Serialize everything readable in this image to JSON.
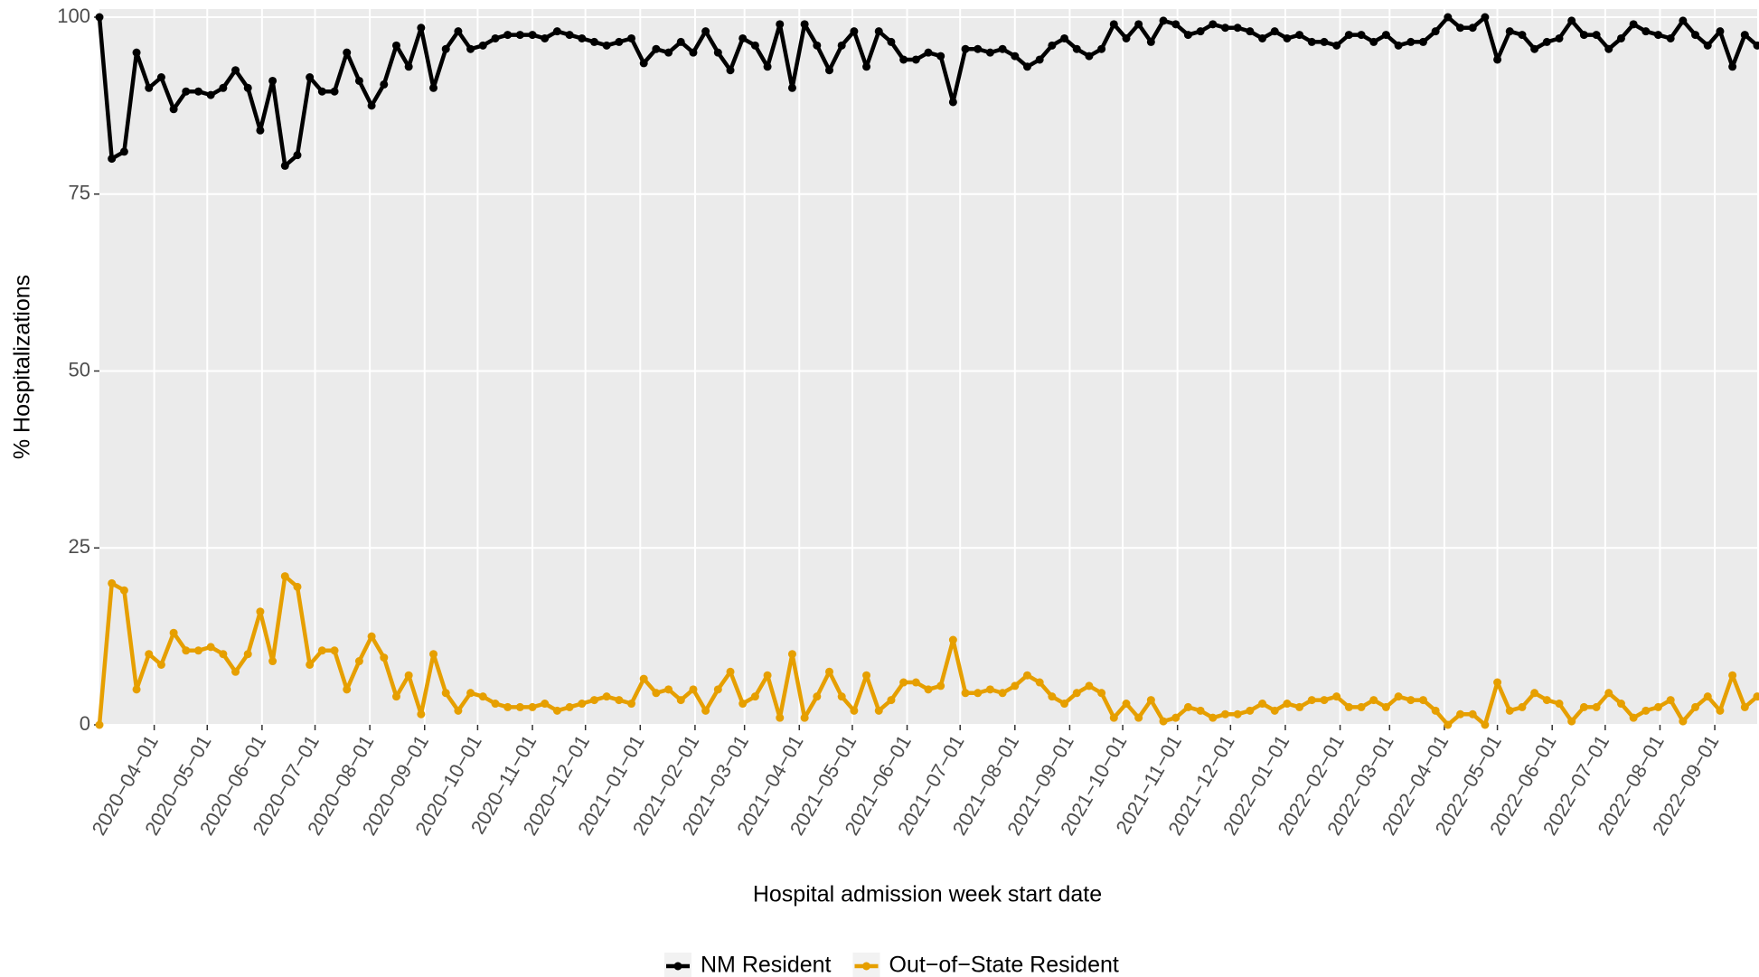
{
  "chart_data": {
    "type": "line",
    "x_label": "Hospital admission week start date",
    "y_label": "% Hospitalizations",
    "x": [
      "2020-03-01",
      "2020-03-08",
      "2020-03-15",
      "2020-03-22",
      "2020-03-29",
      "2020-04-05",
      "2020-04-12",
      "2020-04-19",
      "2020-04-26",
      "2020-05-03",
      "2020-05-10",
      "2020-05-17",
      "2020-05-24",
      "2020-05-31",
      "2020-06-07",
      "2020-06-14",
      "2020-06-21",
      "2020-06-28",
      "2020-07-05",
      "2020-07-12",
      "2020-07-19",
      "2020-07-26",
      "2020-08-02",
      "2020-08-09",
      "2020-08-16",
      "2020-08-23",
      "2020-08-30",
      "2020-09-06",
      "2020-09-13",
      "2020-09-20",
      "2020-09-27",
      "2020-10-04",
      "2020-10-11",
      "2020-10-18",
      "2020-10-25",
      "2020-11-01",
      "2020-11-08",
      "2020-11-15",
      "2020-11-22",
      "2020-11-29",
      "2020-12-06",
      "2020-12-13",
      "2020-12-20",
      "2020-12-27",
      "2021-01-03",
      "2021-01-10",
      "2021-01-17",
      "2021-01-24",
      "2021-01-31",
      "2021-02-07",
      "2021-02-14",
      "2021-02-21",
      "2021-02-28",
      "2021-03-07",
      "2021-03-14",
      "2021-03-21",
      "2021-03-28",
      "2021-04-04",
      "2021-04-11",
      "2021-04-18",
      "2021-04-25",
      "2021-05-02",
      "2021-05-09",
      "2021-05-16",
      "2021-05-23",
      "2021-05-30",
      "2021-06-06",
      "2021-06-13",
      "2021-06-20",
      "2021-06-27",
      "2021-07-04",
      "2021-07-11",
      "2021-07-18",
      "2021-07-25",
      "2021-08-01",
      "2021-08-08",
      "2021-08-15",
      "2021-08-22",
      "2021-08-29",
      "2021-09-05",
      "2021-09-12",
      "2021-09-19",
      "2021-09-26",
      "2021-10-03",
      "2021-10-10",
      "2021-10-17",
      "2021-10-24",
      "2021-10-31",
      "2021-11-07",
      "2021-11-14",
      "2021-11-21",
      "2021-11-28",
      "2021-12-05",
      "2021-12-12",
      "2021-12-19",
      "2021-12-26",
      "2022-01-02",
      "2022-01-09",
      "2022-01-16",
      "2022-01-23",
      "2022-01-30",
      "2022-02-06",
      "2022-02-13",
      "2022-02-20",
      "2022-02-27",
      "2022-03-06",
      "2022-03-13",
      "2022-03-20",
      "2022-03-27",
      "2022-04-03",
      "2022-04-10",
      "2022-04-17",
      "2022-04-24",
      "2022-05-01",
      "2022-05-08",
      "2022-05-15",
      "2022-05-22",
      "2022-05-29",
      "2022-06-05",
      "2022-06-12",
      "2022-06-19",
      "2022-06-26",
      "2022-07-03",
      "2022-07-10",
      "2022-07-17",
      "2022-07-24",
      "2022-07-31",
      "2022-08-07",
      "2022-08-14",
      "2022-08-21",
      "2022-08-28",
      "2022-09-04",
      "2022-09-11",
      "2022-09-18",
      "2022-09-25"
    ],
    "series": [
      {
        "name": "NM Resident",
        "color": "#000000",
        "values": [
          100,
          80,
          81,
          95,
          90,
          91.5,
          87,
          89.5,
          89.5,
          89,
          90,
          92.5,
          90,
          84,
          91,
          79,
          80.5,
          91.5,
          89.5,
          89.5,
          95,
          91,
          87.5,
          90.5,
          96,
          93,
          98.5,
          90,
          95.5,
          98,
          95.5,
          96,
          97,
          97.5,
          97.5,
          97.5,
          97,
          98,
          97.5,
          97,
          96.5,
          96,
          96.5,
          97,
          93.5,
          95.5,
          95,
          96.5,
          95,
          98,
          95,
          92.5,
          97,
          96,
          93,
          99,
          90,
          99,
          96,
          92.5,
          96,
          98,
          93,
          98,
          96.5,
          94,
          94,
          95,
          94.5,
          88,
          95.5,
          95.5,
          95,
          95.5,
          94.5,
          93,
          94,
          96,
          97,
          95.5,
          94.5,
          95.5,
          99,
          97,
          99,
          96.5,
          99.5,
          99,
          97.5,
          98,
          99,
          98.5,
          98.5,
          98,
          97,
          98,
          97,
          97.5,
          96.5,
          96.5,
          96,
          97.5,
          97.5,
          96.5,
          97.5,
          96,
          96.5,
          96.5,
          98,
          100,
          98.5,
          98.5,
          100,
          94,
          98,
          97.5,
          95.5,
          96.5,
          97,
          99.5,
          97.5,
          97.5,
          95.5,
          97,
          99,
          98,
          97.5,
          97,
          99.5,
          97.5,
          96,
          98,
          93,
          97.5,
          96
        ]
      },
      {
        "name": "Out−of−State Resident",
        "color": "#e69f00",
        "values": [
          0,
          20,
          19,
          5,
          10,
          8.5,
          13,
          10.5,
          10.5,
          11,
          10,
          7.5,
          10,
          16,
          9,
          21,
          19.5,
          8.5,
          10.5,
          10.5,
          5,
          9,
          12.5,
          9.5,
          4,
          7,
          1.5,
          10,
          4.5,
          2,
          4.5,
          4,
          3,
          2.5,
          2.5,
          2.5,
          3,
          2,
          2.5,
          3,
          3.5,
          4,
          3.5,
          3,
          6.5,
          4.5,
          5,
          3.5,
          5,
          2,
          5,
          7.5,
          3,
          4,
          7,
          1,
          10,
          1,
          4,
          7.5,
          4,
          2,
          7,
          2,
          3.5,
          6,
          6,
          5,
          5.5,
          12,
          4.5,
          4.5,
          5,
          4.5,
          5.5,
          7,
          6,
          4,
          3,
          4.5,
          5.5,
          4.5,
          1,
          3,
          1,
          3.5,
          0.5,
          1,
          2.5,
          2,
          1,
          1.5,
          1.5,
          2,
          3,
          2,
          3,
          2.5,
          3.5,
          3.5,
          4,
          2.5,
          2.5,
          3.5,
          2.5,
          4,
          3.5,
          3.5,
          2,
          0,
          1.5,
          1.5,
          0,
          6,
          2,
          2.5,
          4.5,
          3.5,
          3,
          0.5,
          2.5,
          2.5,
          4.5,
          3,
          1,
          2,
          2.5,
          3.5,
          0.5,
          2.5,
          4,
          2,
          7,
          2.5,
          4
        ]
      }
    ],
    "xlim": [
      "2020-03-01",
      "2022-09-25"
    ],
    "xticks": [
      {
        "value": "2020-04-01",
        "label": "2020−04−01"
      },
      {
        "value": "2020-05-01",
        "label": "2020−05−01"
      },
      {
        "value": "2020-06-01",
        "label": "2020−06−01"
      },
      {
        "value": "2020-07-01",
        "label": "2020−07−01"
      },
      {
        "value": "2020-08-01",
        "label": "2020−08−01"
      },
      {
        "value": "2020-09-01",
        "label": "2020−09−01"
      },
      {
        "value": "2020-10-01",
        "label": "2020−10−01"
      },
      {
        "value": "2020-11-01",
        "label": "2020−11−01"
      },
      {
        "value": "2020-12-01",
        "label": "2020−12−01"
      },
      {
        "value": "2021-01-01",
        "label": "2021−01−01"
      },
      {
        "value": "2021-02-01",
        "label": "2021−02−01"
      },
      {
        "value": "2021-03-01",
        "label": "2021−03−01"
      },
      {
        "value": "2021-04-01",
        "label": "2021−04−01"
      },
      {
        "value": "2021-05-01",
        "label": "2021−05−01"
      },
      {
        "value": "2021-06-01",
        "label": "2021−06−01"
      },
      {
        "value": "2021-07-01",
        "label": "2021−07−01"
      },
      {
        "value": "2021-08-01",
        "label": "2021−08−01"
      },
      {
        "value": "2021-09-01",
        "label": "2021−09−01"
      },
      {
        "value": "2021-10-01",
        "label": "2021−10−01"
      },
      {
        "value": "2021-11-01",
        "label": "2021−11−01"
      },
      {
        "value": "2021-12-01",
        "label": "2021−12−01"
      },
      {
        "value": "2022-01-01",
        "label": "2022−01−01"
      },
      {
        "value": "2022-02-01",
        "label": "2022−02−01"
      },
      {
        "value": "2022-03-01",
        "label": "2022−03−01"
      },
      {
        "value": "2022-04-01",
        "label": "2022−04−01"
      },
      {
        "value": "2022-05-01",
        "label": "2022−05−01"
      },
      {
        "value": "2022-06-01",
        "label": "2022−06−01"
      },
      {
        "value": "2022-07-01",
        "label": "2022−07−01"
      },
      {
        "value": "2022-08-01",
        "label": "2022−08−01"
      },
      {
        "value": "2022-09-01",
        "label": "2022−09−01"
      }
    ],
    "ylim": [
      0,
      100
    ],
    "yticks": [
      0,
      25,
      50,
      75,
      100
    ],
    "grid": true,
    "legend": "bottom"
  }
}
